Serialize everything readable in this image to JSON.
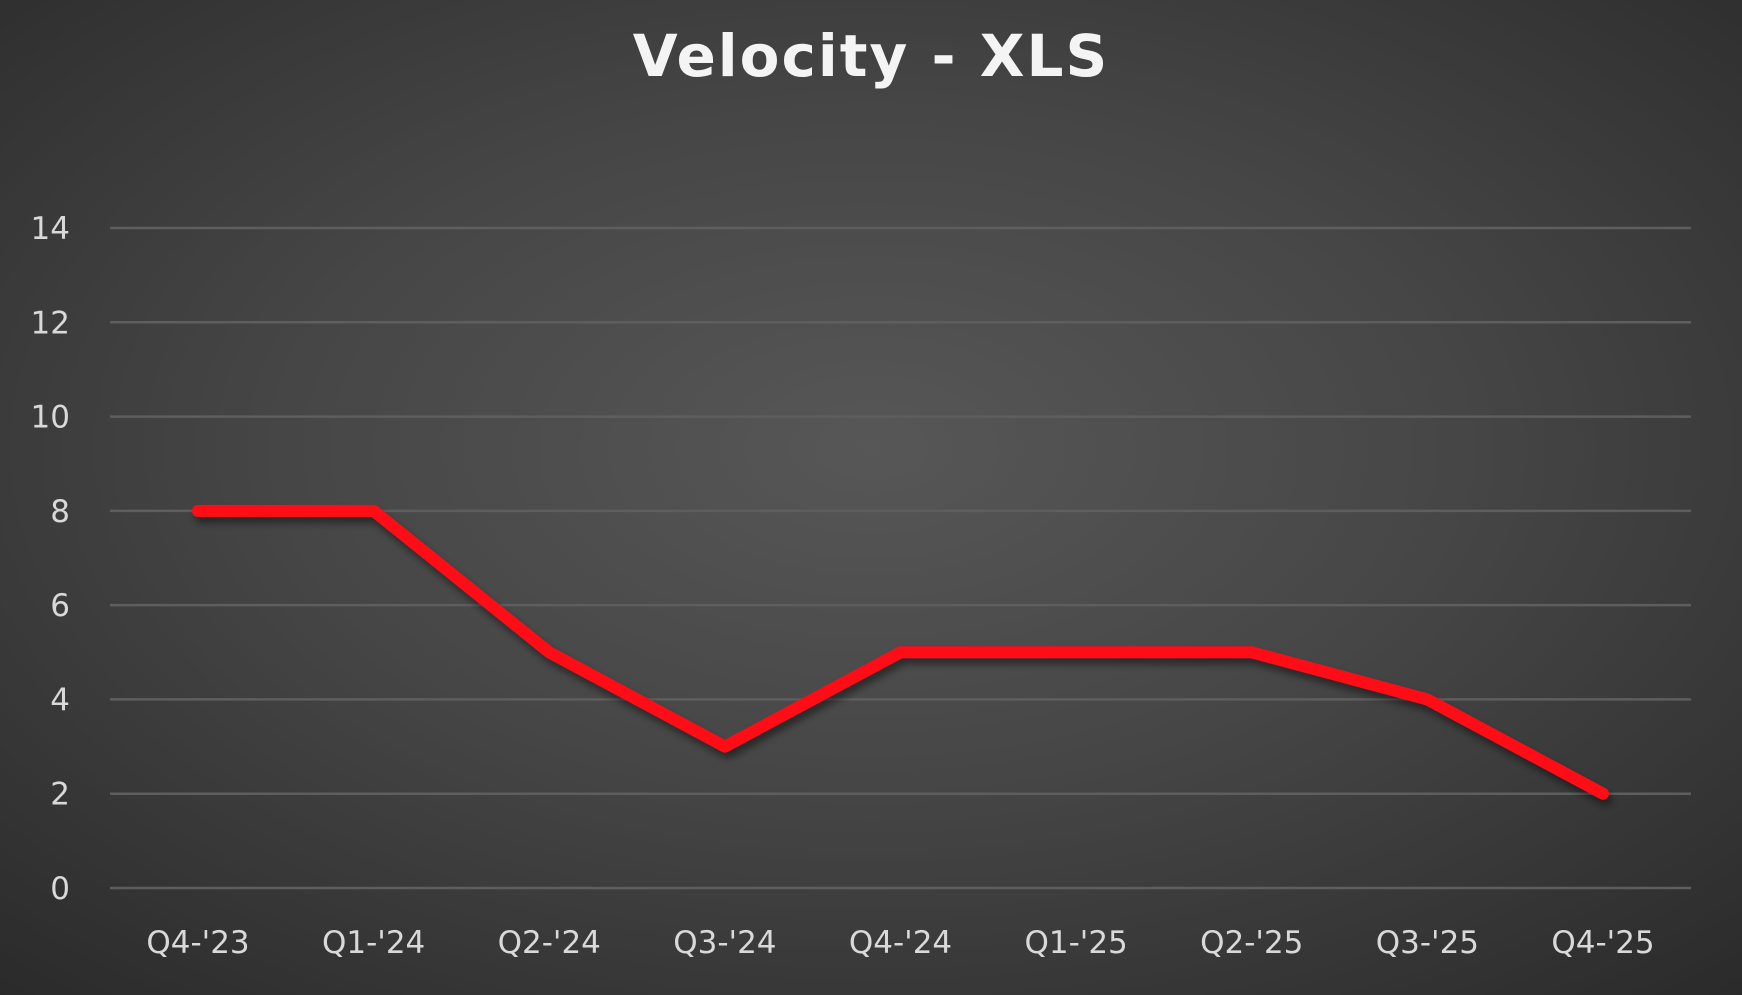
{
  "chart_data": {
    "type": "line",
    "title": "Velocity - XLS",
    "xlabel": "",
    "ylabel": "",
    "categories": [
      "Q4-'23",
      "Q1-'24",
      "Q2-'24",
      "Q3-'24",
      "Q4-'24",
      "Q1-'25",
      "Q2-'25",
      "Q3-'25",
      "Q4-'25"
    ],
    "series": [
      {
        "values": [
          8,
          8,
          5,
          3,
          5,
          5,
          5,
          4,
          2
        ],
        "color": "#ff0a19"
      }
    ],
    "ylim": [
      0,
      14
    ],
    "yticks": [
      "0",
      "2",
      "4",
      "6",
      "8",
      "10",
      "12",
      "14"
    ],
    "grid": true,
    "legend": "none",
    "background": "#4a4a4a",
    "gridline_color": "#5e5e5e"
  }
}
